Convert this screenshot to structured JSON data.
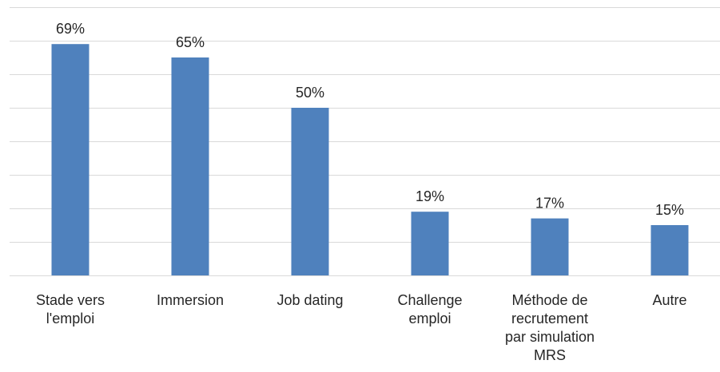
{
  "chart_data": {
    "type": "bar",
    "title": "",
    "xlabel": "",
    "ylabel": "",
    "ylim": [
      0,
      80
    ],
    "grid": true,
    "unit": "%",
    "color": "#4f81bd",
    "gridline_color": "#d9d9d9",
    "text_color": "#262626",
    "categories": [
      [
        "Stade vers",
        "l'emploi"
      ],
      [
        "Immersion"
      ],
      [
        "Job dating"
      ],
      [
        "Challenge",
        "emploi"
      ],
      [
        "Méthode de",
        "recrutement",
        "par simulation",
        "MRS"
      ],
      [
        "Autre"
      ]
    ],
    "values": [
      69,
      65,
      50,
      19,
      17,
      15
    ],
    "data_labels": [
      "69%",
      "65%",
      "50%",
      "19%",
      "17%",
      "15%"
    ]
  }
}
